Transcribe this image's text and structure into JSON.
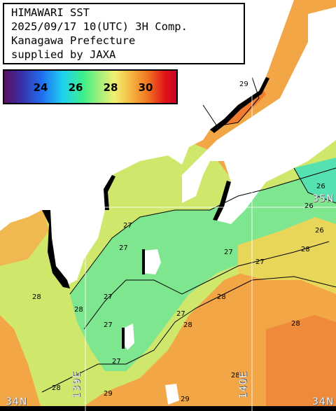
{
  "header": {
    "title": "HIMAWARI SST",
    "datetime": "2025/09/17 10(UTC) 3H Comp.",
    "region": "Kanagawa Prefecture",
    "credit": "supplied by JAXA"
  },
  "colorbar": {
    "tick_labels": [
      "24",
      "26",
      "28",
      "30"
    ],
    "tick_values": [
      24,
      26,
      28,
      30
    ],
    "range": [
      21,
      32
    ]
  },
  "grid_labels": {
    "lat_left": "34N",
    "lat_right_top": "35N",
    "lat_right_bottom": "34N",
    "lon_139": "139E",
    "lon_140": "140E"
  },
  "contour_labels": [
    "29",
    "26",
    "26",
    "26",
    "27",
    "27",
    "27",
    "27",
    "27",
    "28",
    "28",
    "28",
    "27",
    "27",
    "27",
    "28",
    "28",
    "28",
    "28",
    "28",
    "29",
    "29"
  ],
  "colors": {
    "land": "#ffffff",
    "missing": "#000000",
    "sst_27": "#7de68a",
    "sst_28": "#c8ec6e",
    "sst_29": "#f2b24a",
    "sst_30": "#ee7c36",
    "gridline": "#ffffff"
  }
}
